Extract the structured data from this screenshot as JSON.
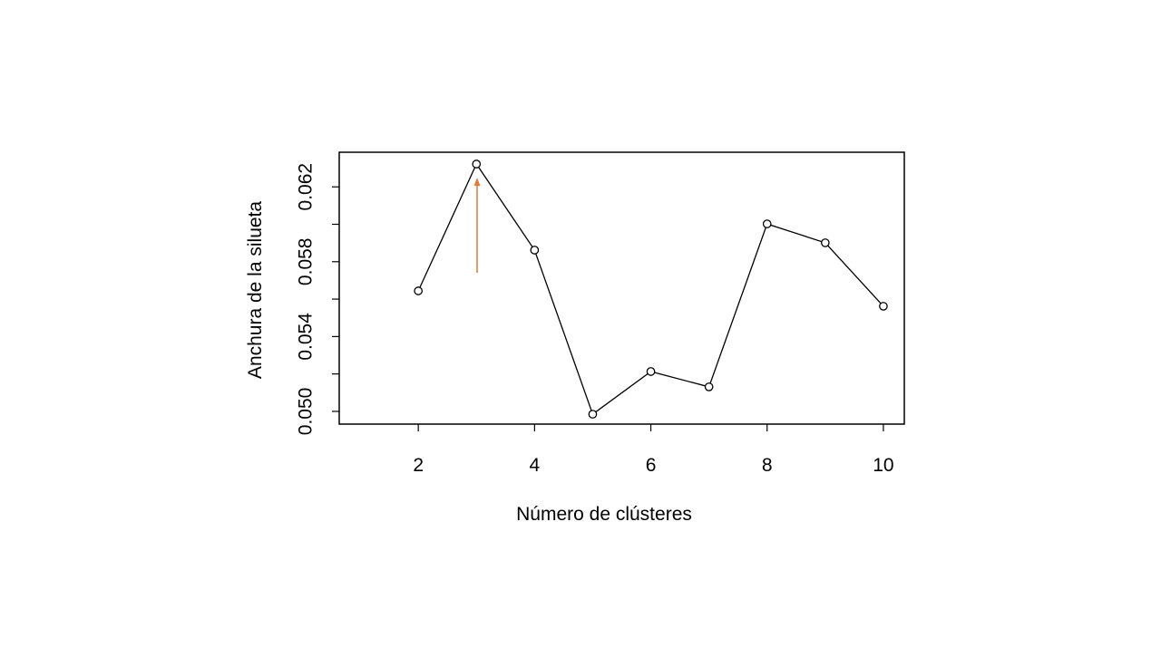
{
  "chart_data": {
    "type": "line",
    "x_label": "Número de clústeres",
    "y_label": "Anchura de la silueta",
    "x": [
      2,
      3,
      4,
      5,
      6,
      7,
      8,
      9,
      10
    ],
    "series": [
      {
        "color": "#000000",
        "values": [
          0.05644,
          0.06322,
          0.05862,
          0.04985,
          0.05213,
          0.05131,
          0.06002,
          0.05901,
          0.05562
        ]
      }
    ],
    "xlim": [
      0.64,
      10.36
    ],
    "ylim": [
      0.04932,
      0.06385
    ],
    "xticks": [
      2,
      4,
      6,
      8,
      10
    ],
    "yticks": [
      {
        "value": 0.05,
        "label": "0.050"
      },
      {
        "value": 0.052,
        "label": null
      },
      0.054,
      {
        "value": 0.056,
        "label": null
      },
      0.058,
      {
        "value": 0.06,
        "label": null
      },
      0.062
    ],
    "grid": false
  }
}
